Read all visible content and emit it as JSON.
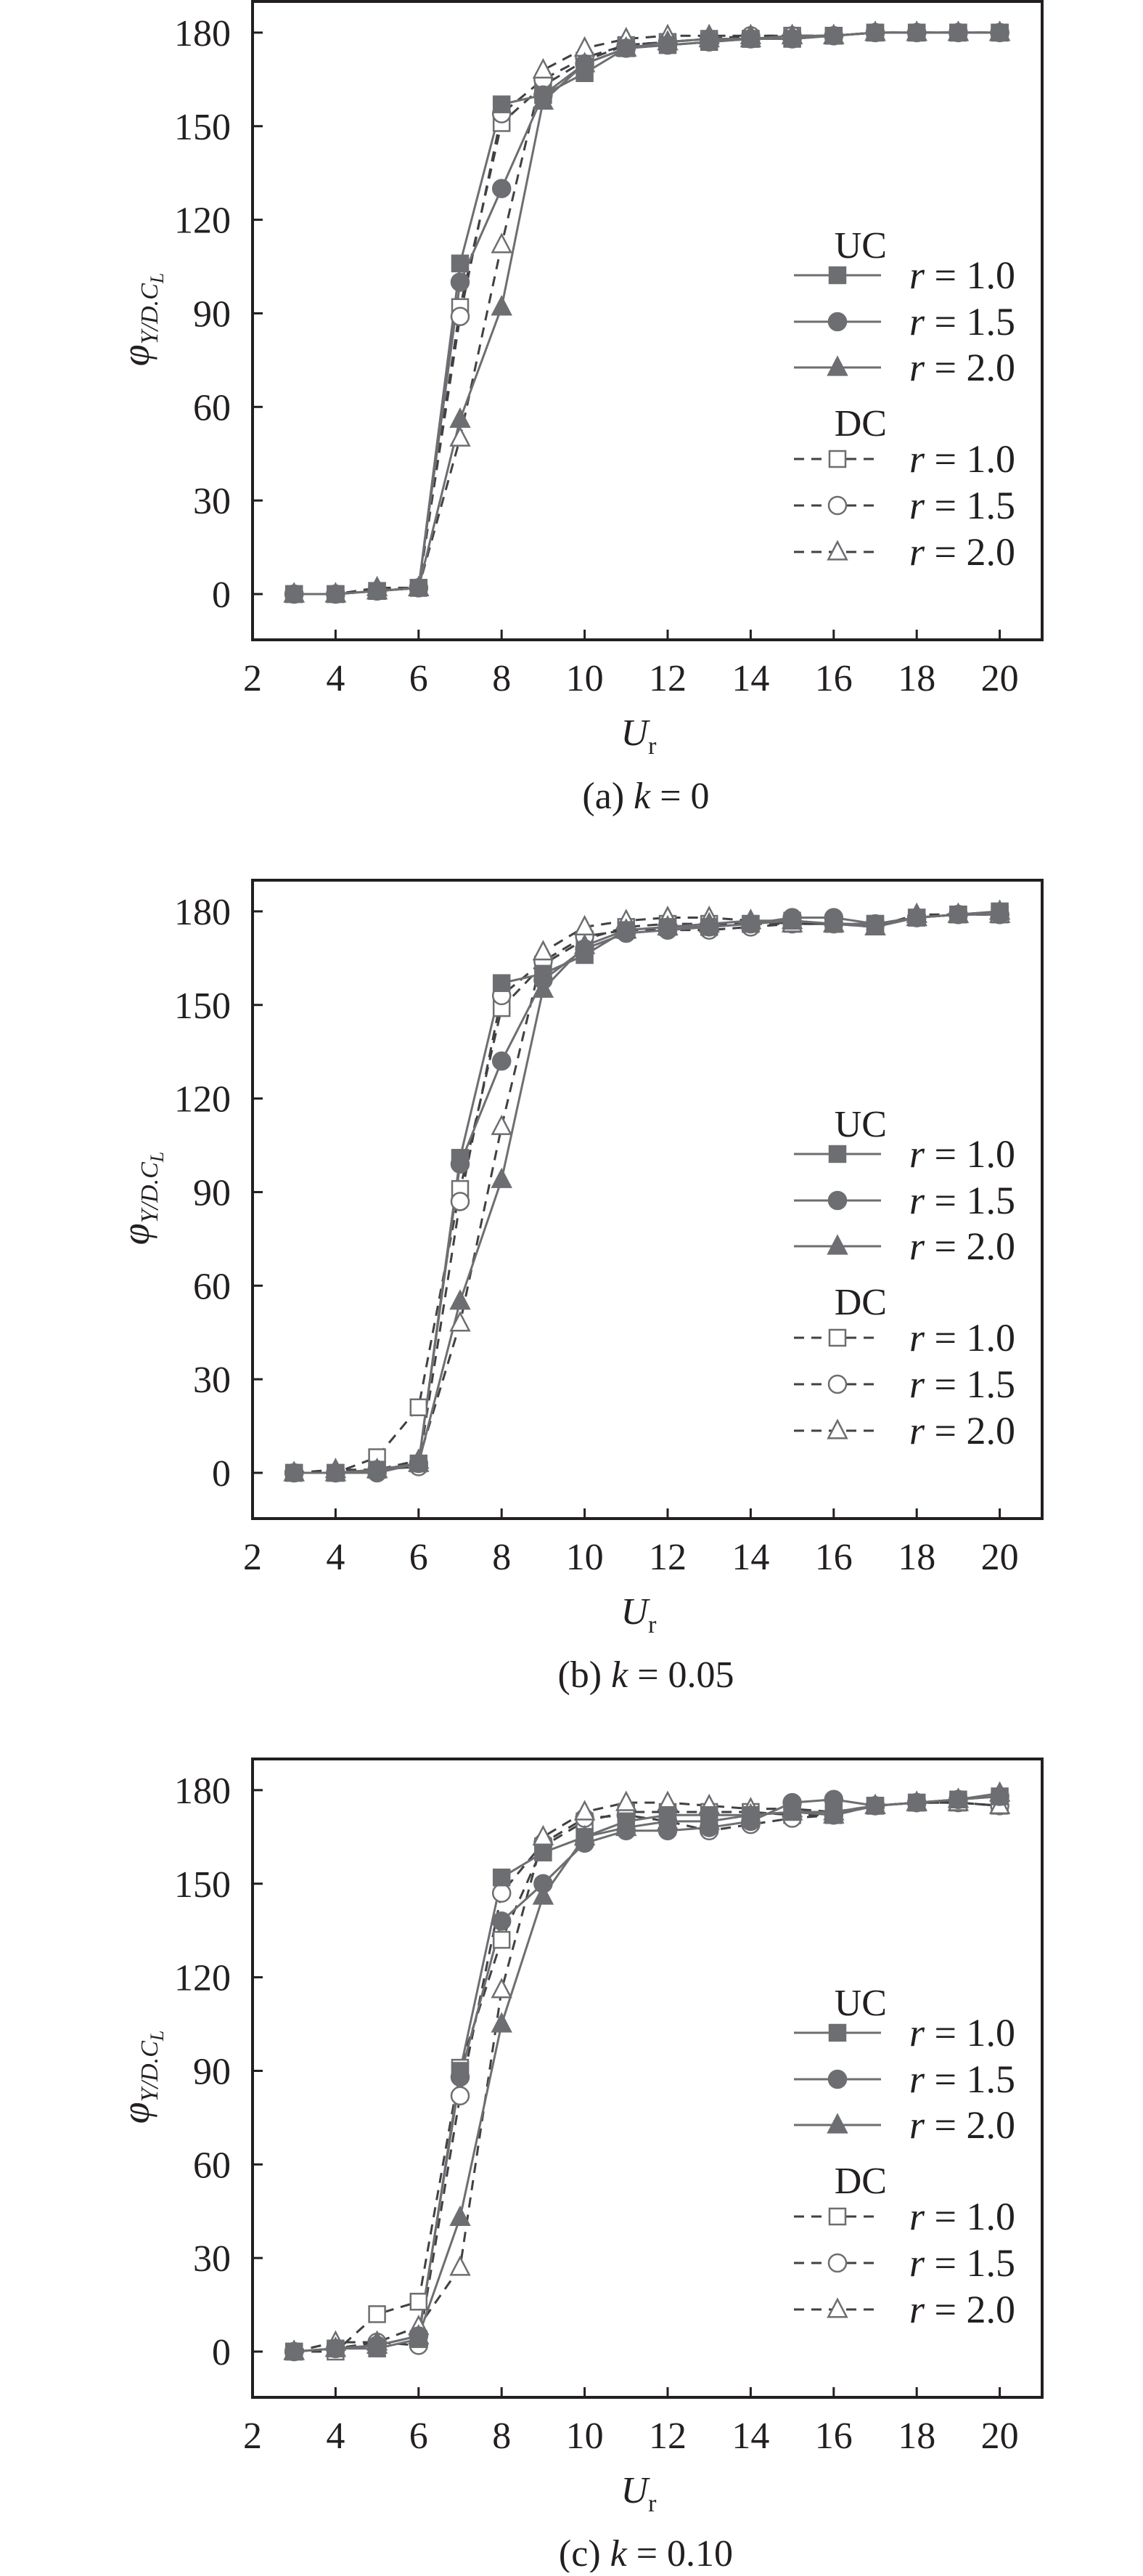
{
  "figure": {
    "ylabel": "φY/D.CL",
    "ylabel_main": "φ",
    "ylabel_sub": "Y/D.C",
    "ylabel_subsub": "L",
    "xlabel_main": "U",
    "xlabel_sub": "r",
    "colors": {
      "axis": "#231f20",
      "series": "#6d6e71",
      "dashed": "#414042",
      "open_fill": "#ffffff"
    }
  },
  "legend": {
    "uc_title": "UC",
    "dc_title": "DC",
    "items": [
      {
        "group": "UC",
        "label": "r = 1.0",
        "r": "r",
        "eq": " = 1.0",
        "marker": "filled-square",
        "line": "solid"
      },
      {
        "group": "UC",
        "label": "r = 1.5",
        "r": "r",
        "eq": " = 1.5",
        "marker": "filled-circle",
        "line": "solid"
      },
      {
        "group": "UC",
        "label": "r = 2.0",
        "r": "r",
        "eq": " = 2.0",
        "marker": "filled-triangle",
        "line": "solid"
      },
      {
        "group": "DC",
        "label": "r = 1.0",
        "r": "r",
        "eq": " = 1.0",
        "marker": "open-square",
        "line": "dashed"
      },
      {
        "group": "DC",
        "label": "r = 1.5",
        "r": "r",
        "eq": " = 1.5",
        "marker": "open-circle",
        "line": "dashed"
      },
      {
        "group": "DC",
        "label": "r = 2.0",
        "r": "r",
        "eq": " = 2.0",
        "marker": "open-triangle",
        "line": "dashed"
      }
    ]
  },
  "panels": [
    {
      "id": "a",
      "caption_prefix": "(a) ",
      "caption_k": "k",
      "caption_suffix": " = 0",
      "caption": "(a) k = 0"
    },
    {
      "id": "b",
      "caption_prefix": "(b) ",
      "caption_k": "k",
      "caption_suffix": " = 0.05",
      "caption": "(b) k = 0.05"
    },
    {
      "id": "c",
      "caption_prefix": "(c) ",
      "caption_k": "k",
      "caption_suffix": " = 0.10",
      "caption": "(c) k = 0.10"
    }
  ],
  "chart_data": [
    {
      "type": "line",
      "title": "(a) k = 0",
      "xlabel": "Ur",
      "ylabel": "φY/D.CL",
      "xlim": [
        2,
        21
      ],
      "ylim": [
        -15,
        195
      ],
      "xticks": [
        2,
        4,
        6,
        8,
        10,
        12,
        14,
        16,
        18,
        20
      ],
      "yticks": [
        0,
        30,
        60,
        90,
        120,
        150,
        180
      ],
      "grid": false,
      "legend_position": "right-middle inside",
      "x": [
        3,
        4,
        5,
        6,
        7,
        8,
        9,
        10,
        11,
        12,
        13,
        14,
        15,
        16,
        17,
        18,
        19,
        20
      ],
      "series": [
        {
          "name": "UC r = 1.0",
          "values": [
            0,
            0,
            1,
            2,
            106,
            157,
            160,
            167,
            175,
            176,
            177,
            178,
            178,
            179,
            180,
            180,
            180,
            180
          ]
        },
        {
          "name": "UC r = 1.5",
          "values": [
            0,
            0,
            1,
            2,
            100,
            130,
            160,
            170,
            175,
            176,
            177,
            178,
            178,
            179,
            180,
            180,
            180,
            180
          ]
        },
        {
          "name": "UC r = 2.0",
          "values": [
            0,
            0,
            1,
            2,
            56,
            92,
            158,
            170,
            175,
            177,
            178,
            178,
            179,
            179,
            180,
            180,
            180,
            180
          ]
        },
        {
          "name": "DC r = 1.0",
          "values": [
            0,
            0,
            1,
            2,
            92,
            151,
            163,
            171,
            176,
            177,
            178,
            178,
            179,
            179,
            180,
            180,
            180,
            180
          ]
        },
        {
          "name": "DC r = 1.5",
          "values": [
            0,
            0,
            1,
            2,
            89,
            154,
            165,
            172,
            176,
            177,
            178,
            179,
            179,
            179,
            180,
            180,
            180,
            180
          ]
        },
        {
          "name": "DC r = 2.0",
          "values": [
            0,
            0,
            2,
            2,
            50,
            112,
            168,
            175,
            178,
            179,
            179,
            179,
            179,
            179,
            180,
            180,
            180,
            180
          ]
        }
      ]
    },
    {
      "type": "line",
      "title": "(b) k = 0.05",
      "xlabel": "Ur",
      "ylabel": "φY/D.CL",
      "xlim": [
        2,
        21
      ],
      "ylim": [
        -15,
        195
      ],
      "xticks": [
        2,
        4,
        6,
        8,
        10,
        12,
        14,
        16,
        18,
        20
      ],
      "yticks": [
        0,
        30,
        60,
        90,
        120,
        150,
        180
      ],
      "grid": false,
      "legend_position": "right-middle inside",
      "x": [
        3,
        4,
        5,
        6,
        7,
        8,
        9,
        10,
        11,
        12,
        13,
        14,
        15,
        16,
        17,
        18,
        19,
        20
      ],
      "series": [
        {
          "name": "UC r = 1.0",
          "values": [
            0,
            0,
            1,
            3,
            101,
            157,
            160,
            166,
            174,
            175,
            175,
            176,
            177,
            176,
            176,
            178,
            179,
            180
          ]
        },
        {
          "name": "UC r = 1.5",
          "values": [
            0,
            0,
            0,
            3,
            99,
            132,
            158,
            168,
            173,
            174,
            175,
            176,
            178,
            178,
            176,
            178,
            179,
            179
          ]
        },
        {
          "name": "UC r = 2.0",
          "values": [
            0,
            0,
            1,
            3,
            55,
            94,
            155,
            169,
            174,
            175,
            176,
            177,
            177,
            176,
            175,
            178,
            179,
            180
          ]
        },
        {
          "name": "DC r = 1.0",
          "values": [
            0,
            0,
            5,
            21,
            91,
            149,
            163,
            171,
            175,
            176,
            176,
            176,
            176,
            176,
            176,
            178,
            179,
            179
          ]
        },
        {
          "name": "DC r = 1.5",
          "values": [
            0,
            0,
            1,
            2,
            87,
            153,
            164,
            172,
            174,
            174,
            174,
            175,
            176,
            176,
            176,
            178,
            179,
            179
          ]
        },
        {
          "name": "DC r = 2.0",
          "values": [
            0,
            1,
            1,
            4,
            48,
            111,
            167,
            175,
            177,
            178,
            178,
            177,
            176,
            176,
            175,
            179,
            179,
            179
          ]
        }
      ]
    },
    {
      "type": "line",
      "title": "(c) k = 0.10",
      "xlabel": "Ur",
      "ylabel": "φY/D.CL",
      "xlim": [
        2,
        21
      ],
      "ylim": [
        -15,
        195
      ],
      "xticks": [
        2,
        4,
        6,
        8,
        10,
        12,
        14,
        16,
        18,
        20
      ],
      "yticks": [
        0,
        30,
        60,
        90,
        120,
        150,
        180
      ],
      "grid": false,
      "legend_position": "right-middle inside",
      "x": [
        3,
        4,
        5,
        6,
        7,
        8,
        9,
        10,
        11,
        12,
        13,
        14,
        15,
        16,
        17,
        18,
        19,
        20
      ],
      "series": [
        {
          "name": "UC r = 1.0",
          "values": [
            0,
            1,
            1,
            4,
            90,
            152,
            160,
            165,
            170,
            172,
            172,
            172,
            173,
            173,
            175,
            176,
            177,
            178
          ]
        },
        {
          "name": "UC r = 1.5",
          "values": [
            0,
            1,
            2,
            5,
            88,
            138,
            150,
            163,
            167,
            167,
            168,
            170,
            176,
            177,
            175,
            176,
            177,
            178
          ]
        },
        {
          "name": "UC r = 2.0",
          "values": [
            0,
            1,
            2,
            5,
            43,
            105,
            146,
            165,
            168,
            170,
            170,
            172,
            173,
            172,
            175,
            176,
            177,
            179
          ]
        },
        {
          "name": "DC r = 1.0",
          "values": [
            0,
            0,
            12,
            16,
            91,
            132,
            162,
            170,
            173,
            173,
            173,
            173,
            172,
            172,
            175,
            176,
            176,
            175
          ]
        },
        {
          "name": "DC r = 1.5",
          "values": [
            0,
            1,
            3,
            2,
            82,
            147,
            163,
            171,
            172,
            170,
            167,
            169,
            171,
            172,
            175,
            176,
            176,
            175
          ]
        },
        {
          "name": "DC r = 2.0",
          "values": [
            0,
            3,
            3,
            8,
            27,
            116,
            165,
            173,
            176,
            176,
            175,
            174,
            174,
            173,
            175,
            176,
            176,
            175
          ]
        }
      ]
    }
  ]
}
